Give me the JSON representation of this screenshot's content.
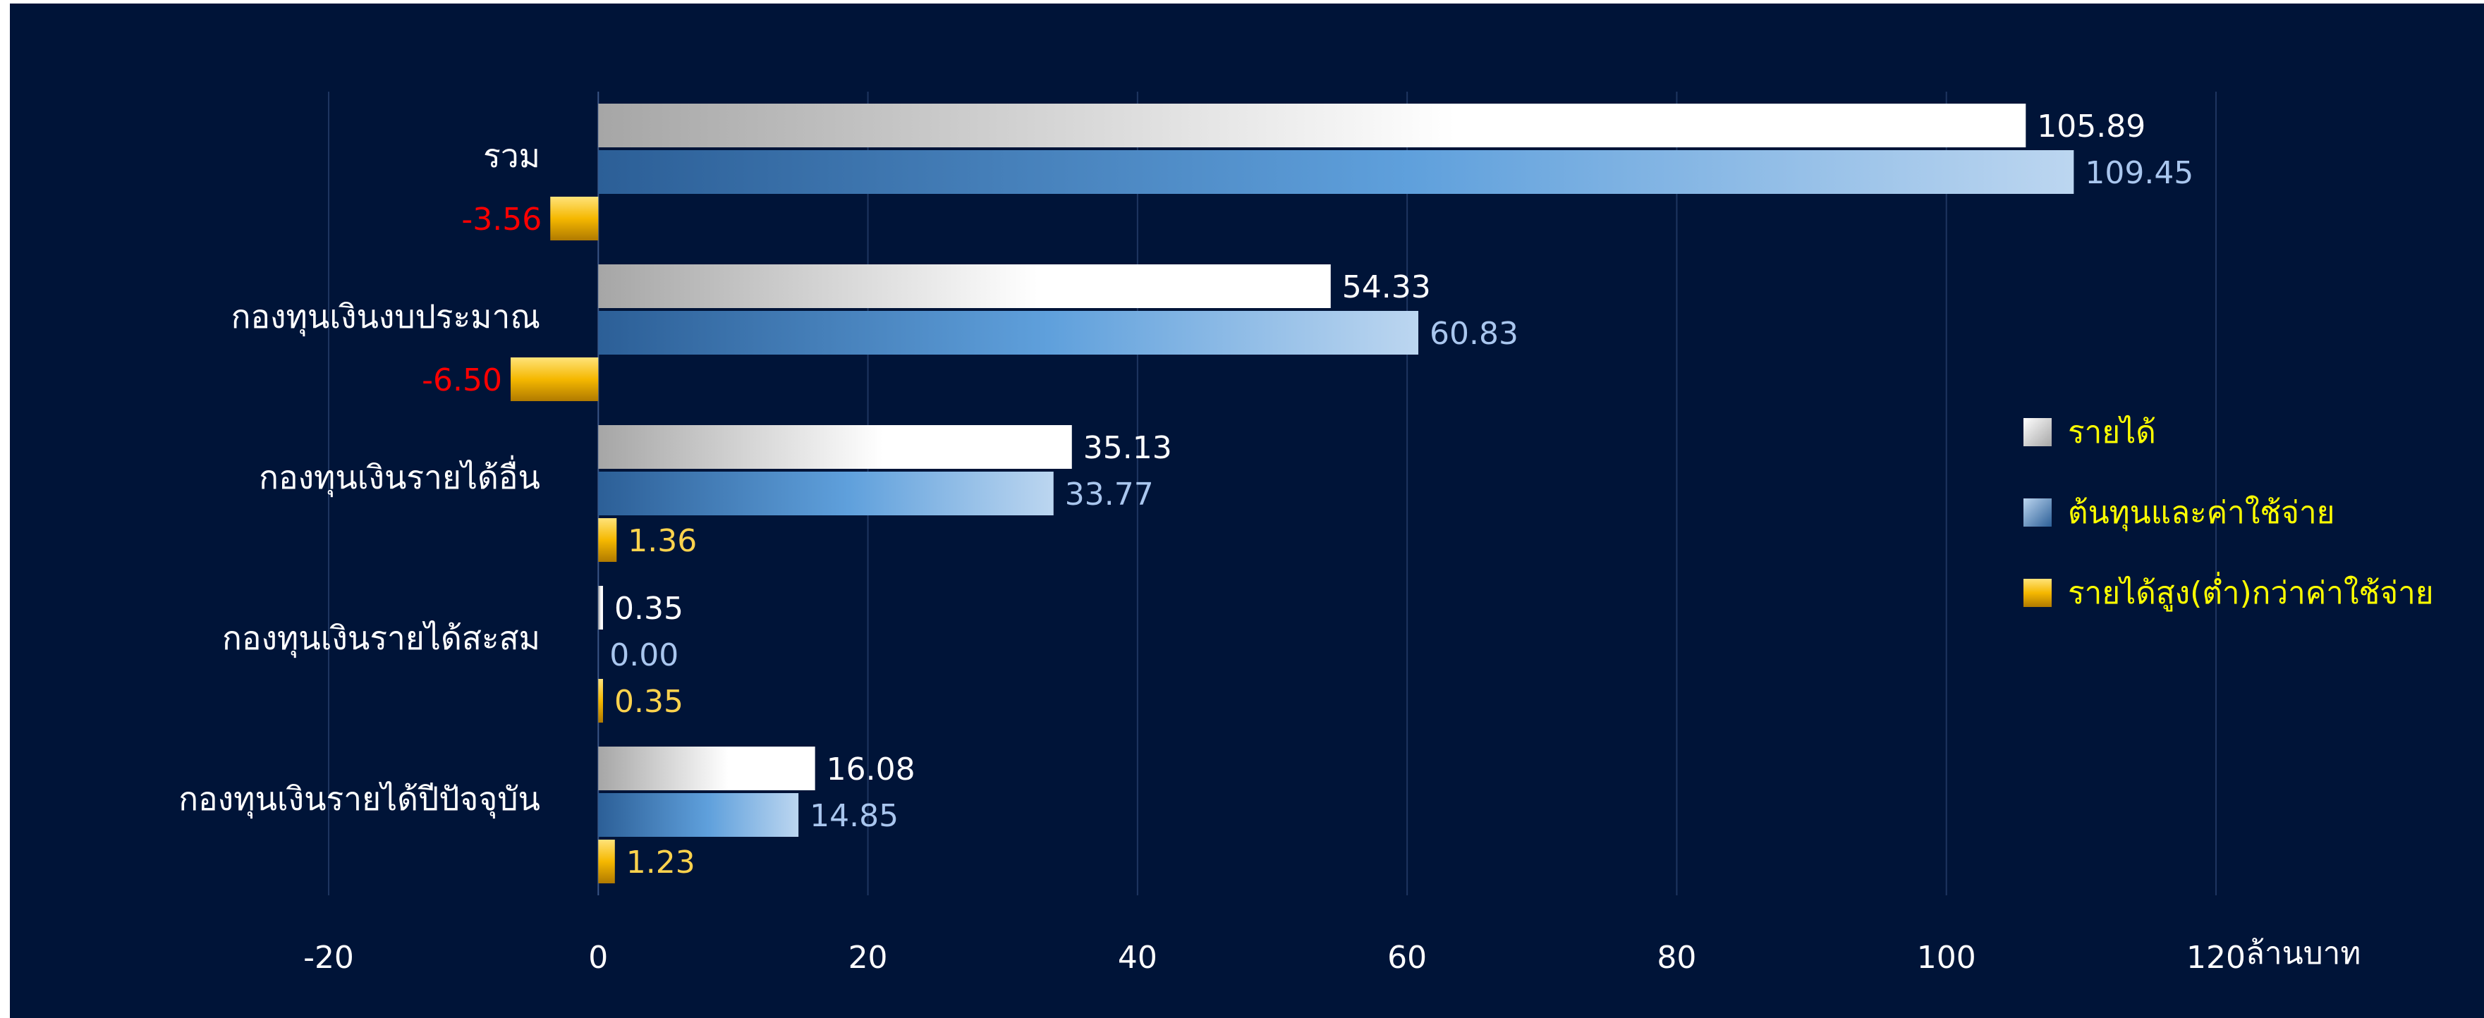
{
  "chart_data": {
    "type": "bar",
    "orientation": "horizontal",
    "categories": [
      "รวม",
      "กองทุนเงินงบประมาณ",
      "กองทุนเงินรายได้อื่น",
      "กองทุนเงินรายได้สะสม",
      "กองทุนเงินรายได้ปีปัจจุบัน"
    ],
    "series": [
      {
        "name": "รายได้",
        "values": [
          105.89,
          54.33,
          35.13,
          0.35,
          16.08
        ]
      },
      {
        "name": "ต้นทุนและค่าใช้จ่าย",
        "values": [
          109.45,
          60.83,
          33.77,
          0.0,
          14.85
        ]
      },
      {
        "name": "รายได้สูง(ต่ำ)กว่าค่าใช้จ่าย",
        "values": [
          -3.56,
          -6.5,
          1.36,
          0.35,
          1.23
        ]
      }
    ],
    "value_labels": [
      [
        "105.89",
        "54.33",
        "35.13",
        "0.35",
        "16.08"
      ],
      [
        "109.45",
        "60.83",
        "33.77",
        "0.00",
        "14.85"
      ],
      [
        "-3.56",
        "-6.50",
        "1.36",
        "0.35",
        "1.23"
      ]
    ],
    "xlabel": "ล้านบาท",
    "xlim": [
      -20,
      120
    ],
    "xticks": [
      "-20",
      "0",
      "20",
      "40",
      "60",
      "80",
      "100",
      "120"
    ],
    "grid": true,
    "legend_position": "right",
    "colors": {
      "background": "#001438",
      "income": "#ffffff",
      "cost": "#5b9bd5",
      "difference": "#f5b800",
      "negative_label": "#ff0000",
      "positive_diff_label": "#ffd34d",
      "cost_label": "#a9c6ee",
      "legend_text": "#ffff00",
      "gridline": "#1e3560"
    }
  }
}
